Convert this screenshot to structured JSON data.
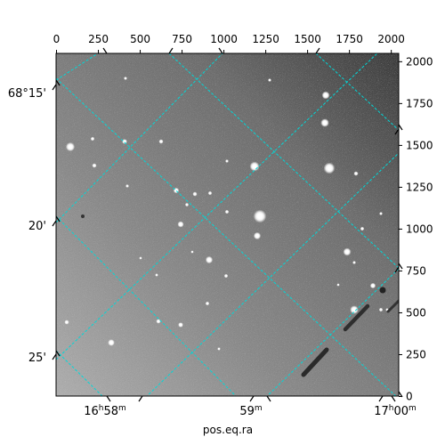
{
  "axis_labels": {
    "bottom": "pos.eq.ra"
  },
  "pixel_axes": {
    "x_ticks": [
      "0",
      "250",
      "500",
      "750",
      "1000",
      "1250",
      "1500",
      "1750",
      "2000"
    ],
    "y_ticks": [
      "0",
      "250",
      "500",
      "750",
      "1000",
      "1250",
      "1500",
      "1750",
      "2000"
    ]
  },
  "world_axes": {
    "ra_ticks": [
      {
        "main": "16",
        "sup1": "h",
        "mid": "58",
        "sup2": "m"
      },
      {
        "main": "59",
        "sup1": "",
        "mid": "",
        "sup2": "m"
      },
      {
        "main": "17",
        "sup1": "h",
        "mid": "00",
        "sup2": "m"
      }
    ],
    "dec_ticks": [
      "68°15'",
      "20'",
      "25'"
    ]
  },
  "colors": {
    "grid": "#00d8d8",
    "frame": "#000000",
    "sky_dark": "#4a4a4a",
    "sky_light": "#b0b0b0"
  },
  "image_content": "astronomical star field (grayscale), with cyan coordinate grid"
}
